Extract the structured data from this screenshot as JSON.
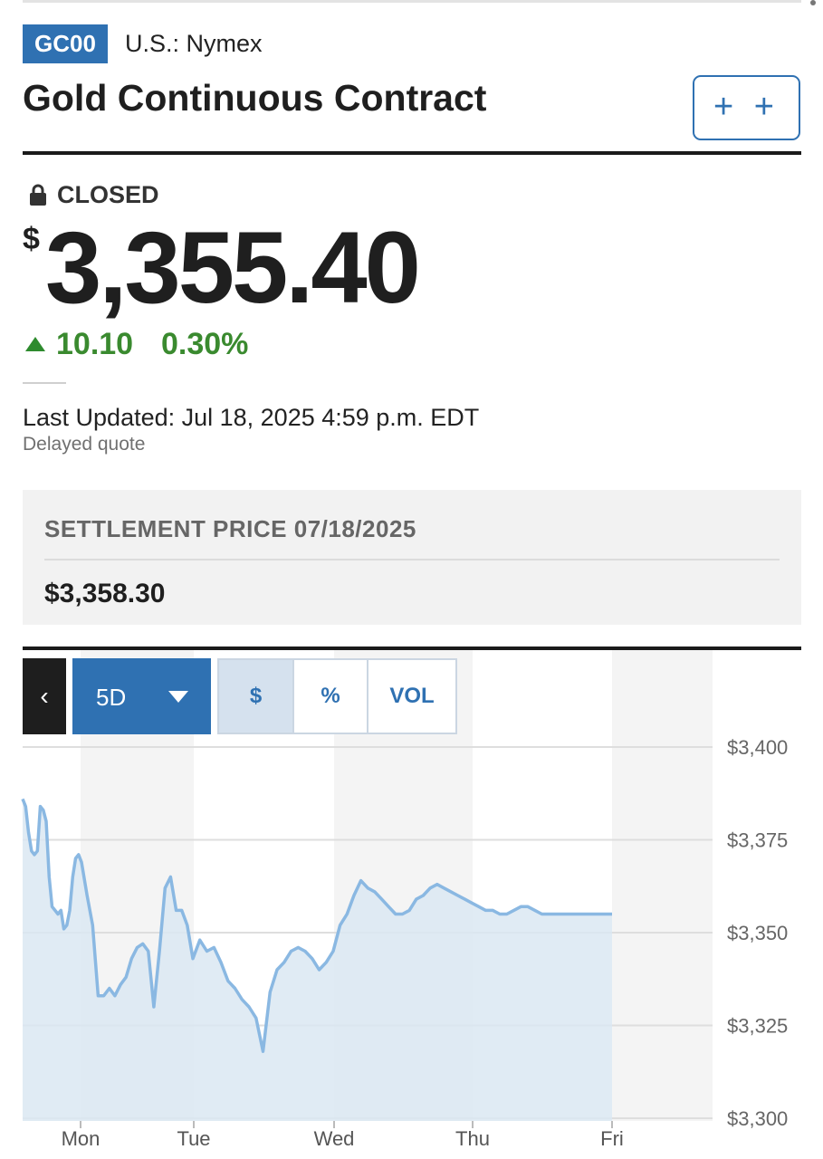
{
  "quote": {
    "symbol": "GC00",
    "exchange": "U.S.: Nymex",
    "name": "Gold Continuous Contract",
    "watchlist_label": "+ +",
    "status": "CLOSED",
    "currency_symbol": "$",
    "price": "3,355.40",
    "change": "10.10",
    "change_percent": "0.30%",
    "last_updated": "Last Updated: Jul 18, 2025 4:59 p.m. EDT",
    "delayed_note": "Delayed quote"
  },
  "settlement": {
    "label": "SETTLEMENT PRICE 07/18/2025",
    "value": "$3,358.30"
  },
  "chart_controls": {
    "back_label": "‹",
    "range_label": "5D",
    "modes": [
      "$",
      "%",
      "VOL"
    ],
    "active_mode": "$"
  },
  "colors": {
    "accent": "#2f71b2",
    "positive": "#3a8a2f",
    "line": "#8ab8e2",
    "area": "#dbe7f2"
  },
  "icons": {
    "status": "lock-icon",
    "range": "caret-down-icon",
    "back": "chevron-left-icon"
  },
  "chart_data": {
    "type": "area",
    "title": "",
    "xlabel": "",
    "ylabel": "",
    "categories": [
      "Mon",
      "Tue",
      "Wed",
      "Thu",
      "Fri"
    ],
    "y_tick_labels": [
      "$3,400",
      "$3,375",
      "$3,350",
      "$3,325",
      "$3,300"
    ],
    "y_ticks": [
      3400,
      3375,
      3350,
      3325,
      3300
    ],
    "ylim": [
      3300,
      3400
    ],
    "grid": true,
    "legend": "none",
    "x": [
      0.0,
      0.05,
      0.1,
      0.15,
      0.2,
      0.25,
      0.3,
      0.35,
      0.4,
      0.45,
      0.5,
      0.55,
      0.6,
      0.65,
      0.7,
      0.75,
      0.8,
      0.85,
      0.9,
      0.95,
      1.0,
      1.05,
      1.1,
      1.15,
      1.2,
      1.25,
      1.3,
      1.35,
      1.4,
      1.45,
      1.5,
      1.55,
      1.6,
      1.65,
      1.7,
      1.75,
      1.8,
      1.85,
      1.9,
      1.95,
      2.0,
      2.05,
      2.1,
      2.15,
      2.2,
      2.25,
      2.3,
      2.35,
      2.4,
      2.45,
      2.5,
      2.55,
      2.6,
      2.65,
      2.7,
      2.75,
      2.8,
      2.85,
      2.9,
      2.95,
      3.0,
      3.05,
      3.1,
      3.15,
      3.2,
      3.25,
      3.3,
      3.35,
      3.4,
      3.45,
      3.5,
      3.55,
      3.6,
      3.65,
      3.7,
      3.75,
      3.8,
      3.85,
      3.9,
      3.95,
      4.0,
      4.05,
      4.1,
      4.15,
      4.2,
      4.25,
      4.3,
      4.35,
      4.4,
      4.45,
      4.5,
      4.55,
      4.6,
      4.65,
      4.7,
      4.75,
      4.8,
      4.85,
      4.9,
      4.95,
      5.0
    ],
    "values": [
      3386,
      3384,
      3377,
      3372,
      3371,
      3372,
      3384,
      3383,
      3380,
      3365,
      3357,
      3356,
      3355,
      3356,
      3351,
      3352,
      3356,
      3365,
      3370,
      3371,
      3369,
      3360,
      3352,
      3333,
      3333,
      3335,
      3333,
      3336,
      3338,
      3343,
      3346,
      3347,
      3345,
      3330,
      3345,
      3362,
      3365,
      3356,
      3356,
      3352,
      3343,
      3348,
      3345,
      3346,
      3342,
      3337,
      3335,
      3332,
      3330,
      3327,
      3318,
      3334,
      3340,
      3342,
      3345,
      3346,
      3345,
      3343,
      3340,
      3342,
      3345,
      3352,
      3355,
      3360,
      3364,
      3362,
      3361,
      3359,
      3357,
      3355,
      3355,
      3356,
      3359,
      3360,
      3362,
      3363,
      3362,
      3361,
      3360,
      3359,
      3358,
      3357,
      3356,
      3356,
      3355,
      3355,
      3356,
      3357,
      3357,
      3356,
      3355,
      3355,
      3355,
      3355,
      3355,
      3355,
      3355,
      3355,
      3355,
      3355,
      3355
    ],
    "series_color": "#8ab8e2"
  }
}
